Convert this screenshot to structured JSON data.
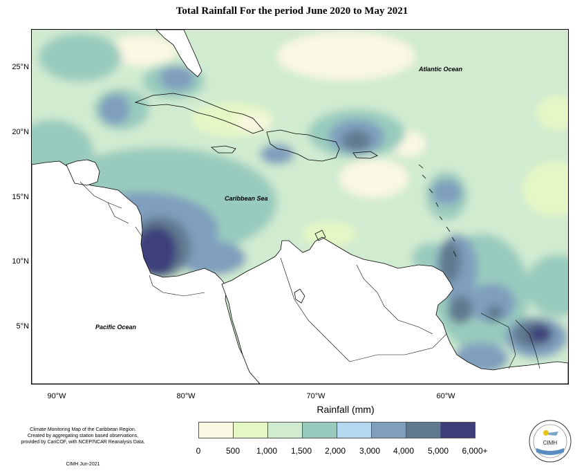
{
  "title": "Total Rainfall For the period June 2020 to May 2021",
  "map": {
    "lat_labels": [
      "25°N",
      "20°N",
      "15°N",
      "10°N",
      "5°N"
    ],
    "lon_labels": [
      "90°W",
      "80°W",
      "70°W",
      "60°W"
    ],
    "places": {
      "atlantic": "Atlantic Ocean",
      "caribbean": "Caribbean Sea",
      "pacific": "Pacific Ocean"
    },
    "colors": {
      "base": "#d6e6cf",
      "land": "#ffffff"
    }
  },
  "legend": {
    "title": "Rainfall (mm)",
    "ticks": [
      "0",
      "500",
      "1,000",
      "1,500",
      "2,000",
      "3,000",
      "4,000",
      "5,000",
      "6,000+"
    ],
    "colors": [
      "#fbf8e3",
      "#e5f7c4",
      "#d0ebd0",
      "#98cbbe",
      "#b3d8ef",
      "#7f9fbd",
      "#61798f",
      "#3d3f7a"
    ]
  },
  "credits": {
    "lines": [
      "Climate Monitoring Map of the Caribbean Region.",
      "Created by aggregating station based observations,",
      "provided by CariCOF, with NCEP/NCAR Reanalysis Data."
    ],
    "date": "CIMH  Jun-2021",
    "logo_text": "CIMH"
  }
}
